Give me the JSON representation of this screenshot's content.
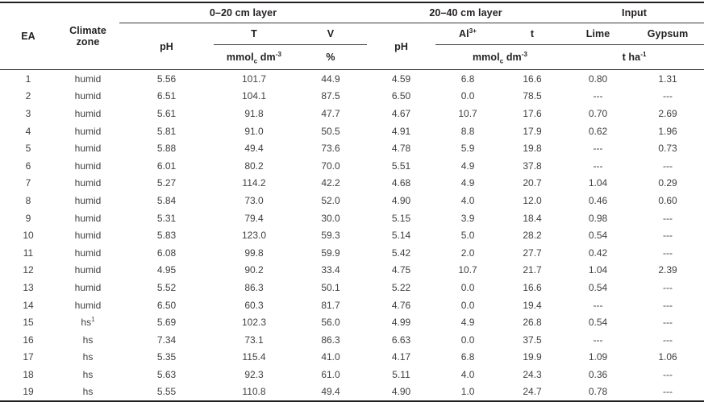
{
  "colors": {
    "rule_heavy": "#231f20",
    "rule_light": "#3a3a3a",
    "header_text": "#231f20",
    "body_text": "#414042",
    "background": "#ffffff"
  },
  "table": {
    "header": {
      "ea": "EA",
      "climate_zone": "Climate zone",
      "layer_0_20": "0–20 cm layer",
      "layer_20_40": "20–40 cm layer",
      "input": "Input",
      "ph": "pH",
      "t_capacity": "T",
      "v": "V",
      "al": "Al^3+^",
      "t_small": "t",
      "lime": "Lime",
      "gypsum": "Gypsum",
      "unit_mmolc": "mmol~c~ dm^-3^",
      "unit_percent": "%",
      "unit_t_ha": "t ha^-1^"
    },
    "rows": [
      {
        "ea": "1",
        "zone": "humid",
        "ph1": "5.56",
        "t": "101.7",
        "v": "44.9",
        "ph2": "4.59",
        "al": "6.8",
        "tt": "16.6",
        "lime": "0.80",
        "gypsum": "1.31"
      },
      {
        "ea": "2",
        "zone": "humid",
        "ph1": "6.51",
        "t": "104.1",
        "v": "87.5",
        "ph2": "6.50",
        "al": "0.0",
        "tt": "78.5",
        "lime": "---",
        "gypsum": "---"
      },
      {
        "ea": "3",
        "zone": "humid",
        "ph1": "5.61",
        "t": "91.8",
        "v": "47.7",
        "ph2": "4.67",
        "al": "10.7",
        "tt": "17.6",
        "lime": "0.70",
        "gypsum": "2.69"
      },
      {
        "ea": "4",
        "zone": "humid",
        "ph1": "5.81",
        "t": "91.0",
        "v": "50.5",
        "ph2": "4.91",
        "al": "8.8",
        "tt": "17.9",
        "lime": "0.62",
        "gypsum": "1.96"
      },
      {
        "ea": "5",
        "zone": "humid",
        "ph1": "5.88",
        "t": "49.4",
        "v": "73.6",
        "ph2": "4.78",
        "al": "5.9",
        "tt": "19.8",
        "lime": "---",
        "gypsum": "0.73"
      },
      {
        "ea": "6",
        "zone": "humid",
        "ph1": "6.01",
        "t": "80.2",
        "v": "70.0",
        "ph2": "5.51",
        "al": "4.9",
        "tt": "37.8",
        "lime": "---",
        "gypsum": "---"
      },
      {
        "ea": "7",
        "zone": "humid",
        "ph1": "5.27",
        "t": "114.2",
        "v": "42.2",
        "ph2": "4.68",
        "al": "4.9",
        "tt": "20.7",
        "lime": "1.04",
        "gypsum": "0.29"
      },
      {
        "ea": "8",
        "zone": "humid",
        "ph1": "5.84",
        "t": "73.0",
        "v": "52.0",
        "ph2": "4.90",
        "al": "4.0",
        "tt": "12.0",
        "lime": "0.46",
        "gypsum": "0.60"
      },
      {
        "ea": "9",
        "zone": "humid",
        "ph1": "5.31",
        "t": "79.4",
        "v": "30.0",
        "ph2": "5.15",
        "al": "3.9",
        "tt": "18.4",
        "lime": "0.98",
        "gypsum": "---"
      },
      {
        "ea": "10",
        "zone": "humid",
        "ph1": "5.83",
        "t": "123.0",
        "v": "59.3",
        "ph2": "5.14",
        "al": "5.0",
        "tt": "28.2",
        "lime": "0.54",
        "gypsum": "---"
      },
      {
        "ea": "11",
        "zone": "humid",
        "ph1": "6.08",
        "t": "99.8",
        "v": "59.9",
        "ph2": "5.42",
        "al": "2.0",
        "tt": "27.7",
        "lime": "0.42",
        "gypsum": "---"
      },
      {
        "ea": "12",
        "zone": "humid",
        "ph1": "4.95",
        "t": "90.2",
        "v": "33.4",
        "ph2": "4.75",
        "al": "10.7",
        "tt": "21.7",
        "lime": "1.04",
        "gypsum": "2.39"
      },
      {
        "ea": "13",
        "zone": "humid",
        "ph1": "5.52",
        "t": "86.3",
        "v": "50.1",
        "ph2": "5.22",
        "al": "0.0",
        "tt": "16.6",
        "lime": "0.54",
        "gypsum": "---"
      },
      {
        "ea": "14",
        "zone": "humid",
        "ph1": "6.50",
        "t": "60.3",
        "v": "81.7",
        "ph2": "4.76",
        "al": "0.0",
        "tt": "19.4",
        "lime": "---",
        "gypsum": "---"
      },
      {
        "ea": "15",
        "zone": "hs^1^",
        "ph1": "5.69",
        "t": "102.3",
        "v": "56.0",
        "ph2": "4.99",
        "al": "4.9",
        "tt": "26.8",
        "lime": "0.54",
        "gypsum": "---"
      },
      {
        "ea": "16",
        "zone": "hs",
        "ph1": "7.34",
        "t": "73.1",
        "v": "86.3",
        "ph2": "6.63",
        "al": "0.0",
        "tt": "37.5",
        "lime": "---",
        "gypsum": "---"
      },
      {
        "ea": "17",
        "zone": "hs",
        "ph1": "5.35",
        "t": "115.4",
        "v": "41.0",
        "ph2": "4.17",
        "al": "6.8",
        "tt": "19.9",
        "lime": "1.09",
        "gypsum": "1.06"
      },
      {
        "ea": "18",
        "zone": "hs",
        "ph1": "5.63",
        "t": "92.3",
        "v": "61.0",
        "ph2": "5.11",
        "al": "4.0",
        "tt": "24.3",
        "lime": "0.36",
        "gypsum": "---"
      },
      {
        "ea": "19",
        "zone": "hs",
        "ph1": "5.55",
        "t": "110.8",
        "v": "49.4",
        "ph2": "4.90",
        "al": "1.0",
        "tt": "24.7",
        "lime": "0.78",
        "gypsum": "---"
      }
    ]
  }
}
